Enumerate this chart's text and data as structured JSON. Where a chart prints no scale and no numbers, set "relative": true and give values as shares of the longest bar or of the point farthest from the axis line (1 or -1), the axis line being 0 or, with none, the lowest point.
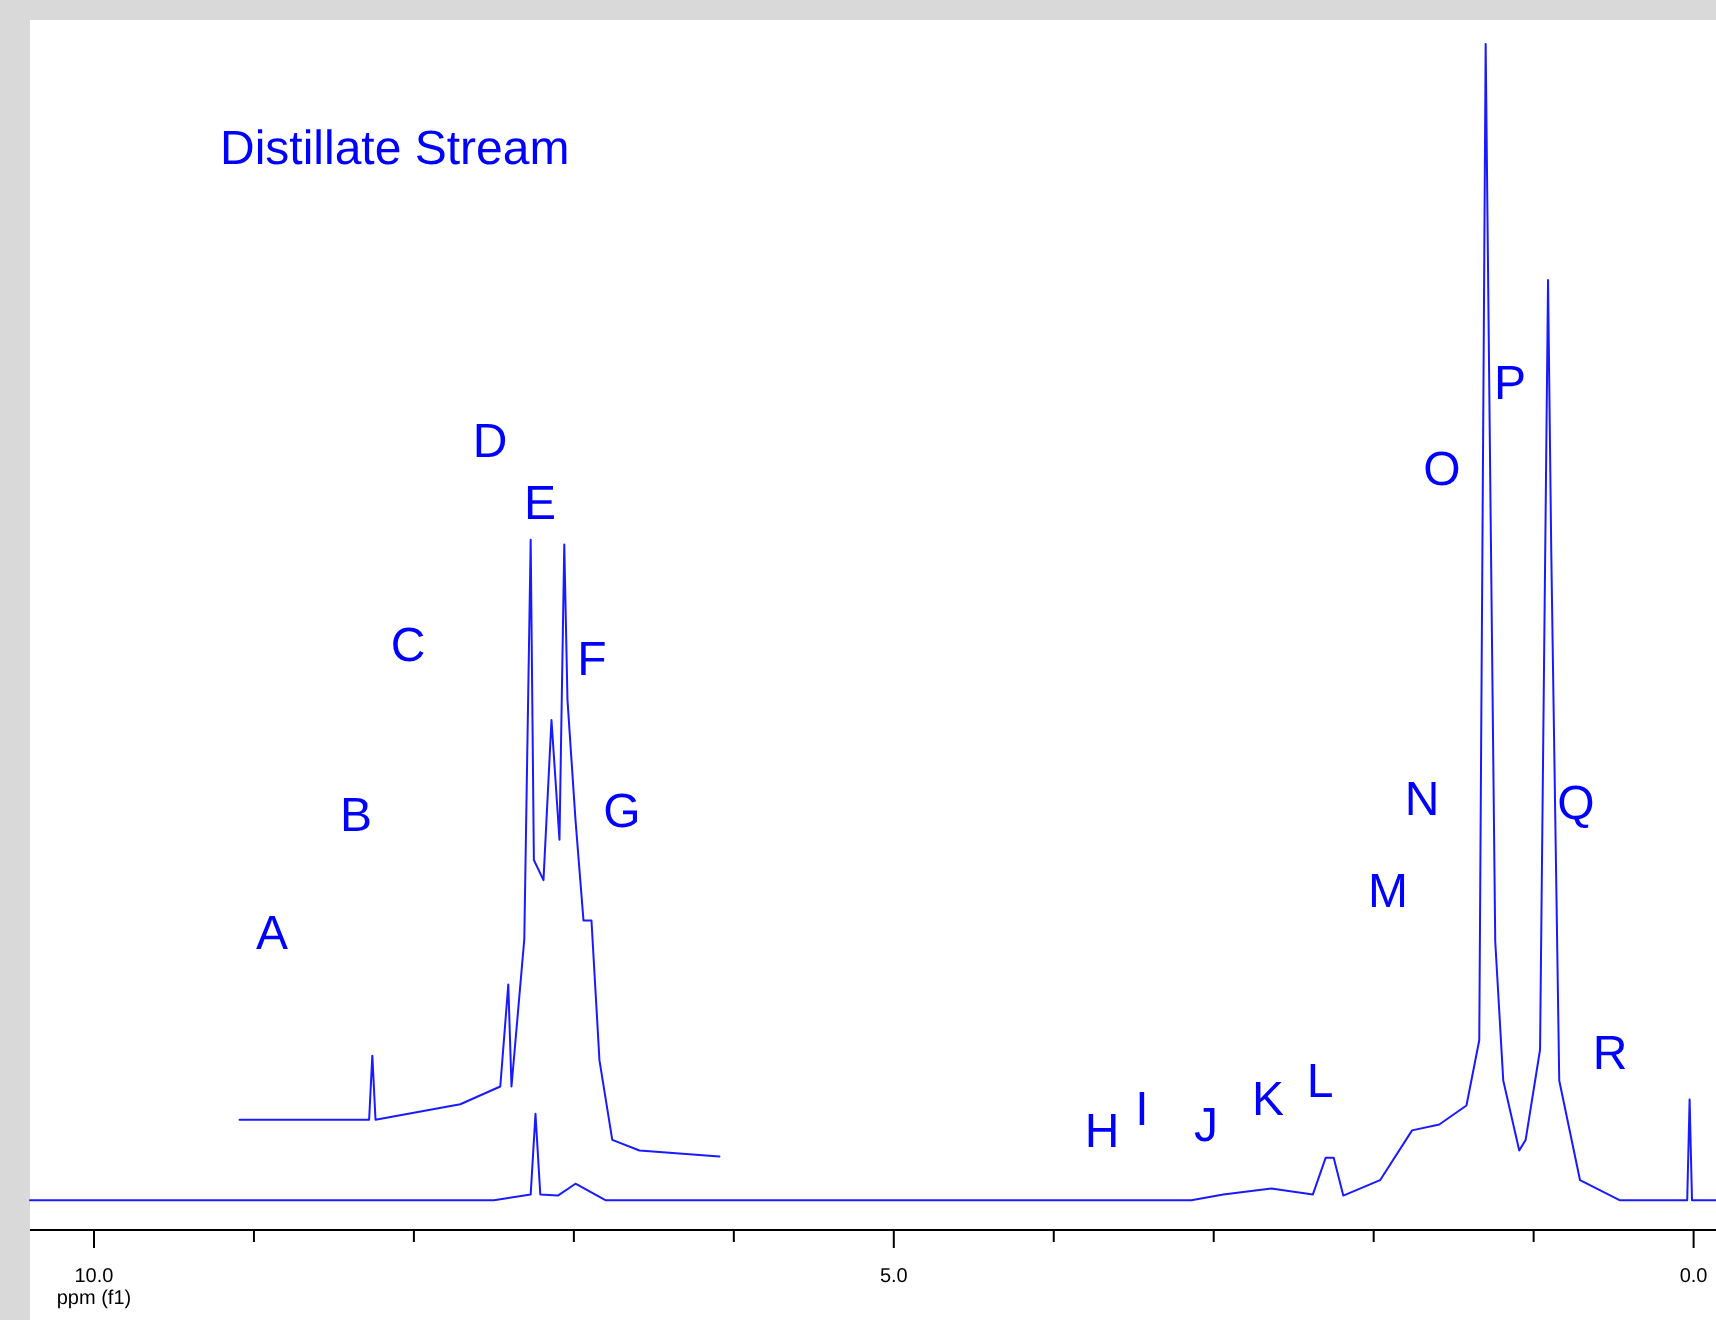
{
  "chart_data": {
    "type": "line",
    "title": "Distillate Stream",
    "xlabel": "ppm (f1)",
    "relative": true,
    "xlim": [
      10.4,
      -0.14
    ],
    "xticks": [
      {
        "value": 10,
        "label": "10.0"
      },
      {
        "value": 9,
        "label": null
      },
      {
        "value": 8,
        "label": null
      },
      {
        "value": 7,
        "label": null
      },
      {
        "value": 6,
        "label": null
      },
      {
        "value": 5,
        "label": "5.0"
      },
      {
        "value": 4,
        "label": null
      },
      {
        "value": 3,
        "label": null
      },
      {
        "value": 2,
        "label": null
      },
      {
        "value": 1,
        "label": null
      },
      {
        "value": 0,
        "label": "0.0"
      }
    ],
    "tick_labels": "x",
    "series": [
      {
        "color": "#1a1aff",
        "x": [
          10.4,
          7.5,
          7.27,
          7.24,
          7.21,
          7.1,
          6.99,
          6.8,
          3.14,
          2.94,
          2.64,
          2.38,
          2.3,
          2.25,
          2.19,
          1.96,
          1.76,
          1.59,
          1.42,
          1.34,
          1.3,
          1.27,
          1.24,
          1.19,
          1.09,
          1.05,
          0.96,
          0.91,
          0.89,
          0.84,
          0.71,
          0.46,
          0.04,
          0.025,
          0.01,
          -0.14
        ],
        "values": [
          0.025,
          0.025,
          0.03,
          0.098,
          0.03,
          0.029,
          0.039,
          0.025,
          0.025,
          0.03,
          0.035,
          0.03,
          0.061,
          0.061,
          0.029,
          0.042,
          0.084,
          0.089,
          0.105,
          0.16,
          1,
          0.616,
          0.243,
          0.126,
          0.067,
          0.076,
          0.152,
          0.801,
          0.573,
          0.126,
          0.042,
          0.025,
          0.025,
          0.11,
          0.025,
          0.025
        ]
      },
      {
        "color": "#1a1aff",
        "x": [
          9.09,
          8.36,
          8.28,
          8.26,
          8.24,
          7.71,
          7.46,
          7.41,
          7.39,
          7.31,
          7.27,
          7.25,
          7.19,
          7.14,
          7.09,
          7.06,
          7.04,
          6.99,
          6.94,
          6.89,
          6.84,
          6.76,
          6.59,
          6.09
        ],
        "values": [
          0.093,
          0.093,
          0.093,
          0.147,
          0.093,
          0.106,
          0.121,
          0.207,
          0.121,
          0.245,
          0.582,
          0.312,
          0.295,
          0.43,
          0.329,
          0.578,
          0.447,
          0.346,
          0.261,
          0.261,
          0.143,
          0.076,
          0.067,
          0.062
        ]
      }
    ],
    "annotations": [
      "A",
      "B",
      "C",
      "D",
      "E",
      "F",
      "G",
      "H",
      "I",
      "J",
      "K",
      "L",
      "M",
      "N",
      "O",
      "P",
      "Q",
      "R"
    ]
  }
}
